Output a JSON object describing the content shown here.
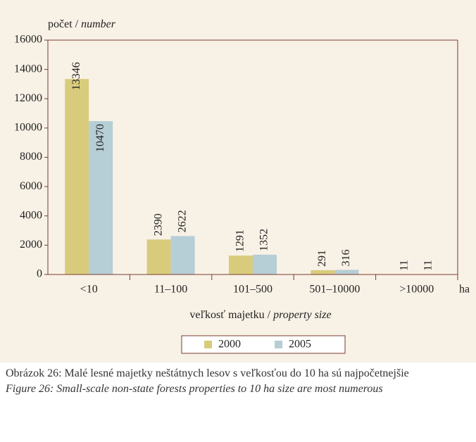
{
  "chart_data": {
    "type": "bar",
    "y_label": {
      "sk": "počet /",
      "en": "number"
    },
    "x_label": {
      "sk": "veľkosť majetku /",
      "en": "property size"
    },
    "x_unit": "ha",
    "categories": [
      "<10",
      "11–100",
      "101–500",
      "501–10000",
      ">10000"
    ],
    "series": [
      {
        "name": "2000",
        "color": "#d8cc7c",
        "values": [
          13346,
          2390,
          1291,
          291,
          11
        ]
      },
      {
        "name": "2005",
        "color": "#b6ced6",
        "values": [
          10470,
          2622,
          1352,
          316,
          11
        ]
      }
    ],
    "ylim": [
      0,
      16000
    ],
    "yticks": [
      0,
      2000,
      4000,
      6000,
      8000,
      10000,
      12000,
      14000,
      16000
    ],
    "grid": false,
    "legend": "bottom"
  },
  "caption": {
    "sk": "Obrázok 26: Malé lesné majetky neštátnych lesov s veľkosťou do 10 ha sú najpočetnejšie",
    "en": "Figure 26: Small-scale non-state forests properties to 10 ha size are most numerous"
  }
}
